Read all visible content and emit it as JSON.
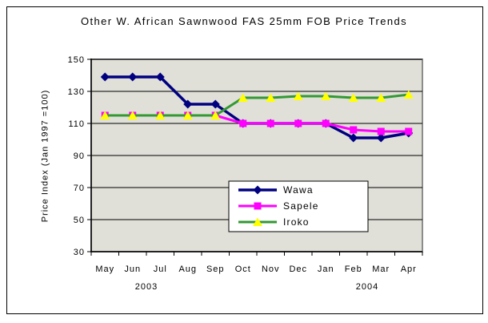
{
  "chart_data": {
    "type": "line",
    "title": "Other W. African Sawnwood FAS 25mm FOB Price Trends",
    "ylabel": "Price Index (Jan 1997 =100)",
    "xlabel": "",
    "categories": [
      "May",
      "Jun",
      "Jul",
      "Aug",
      "Sep",
      "Oct",
      "Nov",
      "Dec",
      "Jan",
      "Feb",
      "Mar",
      "Apr"
    ],
    "year_labels": [
      {
        "text": "2003",
        "boundary_index": 2
      },
      {
        "text": "2004",
        "boundary_index": 10
      }
    ],
    "ylim": [
      30,
      150
    ],
    "yticks": [
      150,
      130,
      110,
      90,
      70,
      50,
      30
    ],
    "grid": true,
    "legend_position": "inside-bottom-center",
    "plot_bg_color": "#e0e0d8",
    "plot_border_color": "#8c8c8c",
    "series": [
      {
        "name": "Wawa",
        "color": "#000080",
        "marker": "diamond",
        "marker_color": "#000080",
        "values": [
          139,
          139,
          139,
          122,
          122,
          110,
          110,
          110,
          110,
          101,
          101,
          104
        ]
      },
      {
        "name": "Sapele",
        "color": "#ff00ff",
        "marker": "square",
        "marker_color": "#ff00ff",
        "values": [
          115,
          115,
          115,
          115,
          115,
          110,
          110,
          110,
          110,
          106,
          105,
          105
        ]
      },
      {
        "name": "Iroko",
        "color": "#339933",
        "marker": "triangle",
        "marker_color": "#ffff00",
        "values": [
          115,
          115,
          115,
          115,
          115,
          126,
          126,
          127,
          127,
          126,
          126,
          128
        ]
      }
    ]
  }
}
